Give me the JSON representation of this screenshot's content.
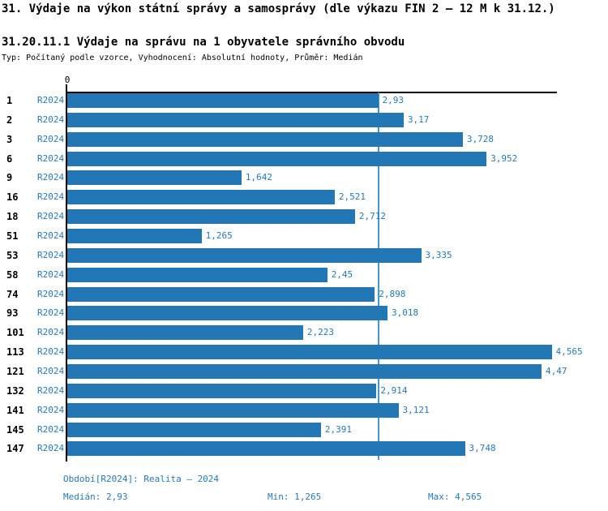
{
  "page": {
    "title": "31. Výdaje na výkon státní správy a samosprávy (dle výkazu FIN 2 – 12 M k 31.12.)",
    "subtitle": "31.20.11.1 Výdaje na správu na 1 obyvatele správního obvodu",
    "meta_line": "Typ: Počítaný podle vzorce, Vyhodnocení: Absolutní hodnoty, Průměr: Medián"
  },
  "chart_data": {
    "type": "bar",
    "orientation": "horizontal",
    "title": "31.20.11.1 Výdaje na správu na 1 obyvatele správního obvodu",
    "categories": [
      "1",
      "2",
      "3",
      "6",
      "9",
      "16",
      "18",
      "51",
      "53",
      "58",
      "74",
      "93",
      "101",
      "113",
      "121",
      "132",
      "141",
      "145",
      "147"
    ],
    "series": [
      {
        "name": "R2024",
        "values": [
          2.93,
          3.17,
          3.728,
          3.952,
          1.642,
          2.521,
          2.712,
          1.265,
          3.335,
          2.45,
          2.898,
          3.018,
          2.223,
          4.565,
          4.47,
          2.914,
          3.121,
          2.391,
          3.748
        ]
      }
    ],
    "value_labels": [
      "2,93",
      "3,17",
      "3,728",
      "3,952",
      "1,642",
      "2,521",
      "2,712",
      "1,265",
      "3,335",
      "2,45",
      "2,898",
      "3,018",
      "2,223",
      "4,565",
      "4,47",
      "2,914",
      "3,121",
      "2,391",
      "3,748"
    ],
    "xlim": [
      0,
      4.615
    ],
    "x_tick_labels": [
      "0"
    ],
    "grid": false,
    "legend_position": "none",
    "median_reference_line": 2.93,
    "median": 2.93,
    "min": 1.265,
    "max": 4.565
  },
  "footer": {
    "period": "Období[R2024]: Realita – 2024",
    "median": "Medián: 2,93",
    "min": "Min: 1,265",
    "max": "Max: 4,565"
  },
  "colors": {
    "bar": "#2277B4",
    "median_line": "#4C96C8",
    "text_blue": "#2878B5",
    "axis": "#000000"
  }
}
